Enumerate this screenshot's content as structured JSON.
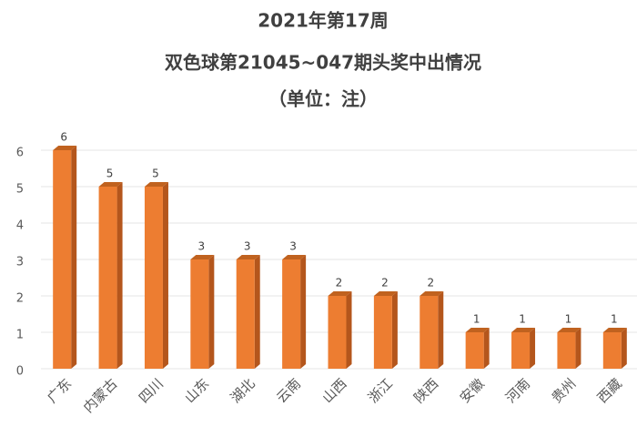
{
  "chart_data": {
    "type": "bar",
    "title": "2021年第17周",
    "subtitle": "双色球第21045~047期头奖中出情况",
    "unit_note": "（单位：注）",
    "categories": [
      "广东",
      "内蒙古",
      "四川",
      "山东",
      "湖北",
      "云南",
      "山西",
      "浙江",
      "陕西",
      "安徽",
      "河南",
      "贵州",
      "西藏"
    ],
    "values": [
      6,
      5,
      5,
      3,
      3,
      3,
      2,
      2,
      2,
      1,
      1,
      1,
      1
    ],
    "color": "#ed7d31",
    "ylim": [
      0,
      6
    ],
    "yticks": [
      0,
      1,
      2,
      3,
      4,
      5,
      6
    ],
    "grid": true
  }
}
